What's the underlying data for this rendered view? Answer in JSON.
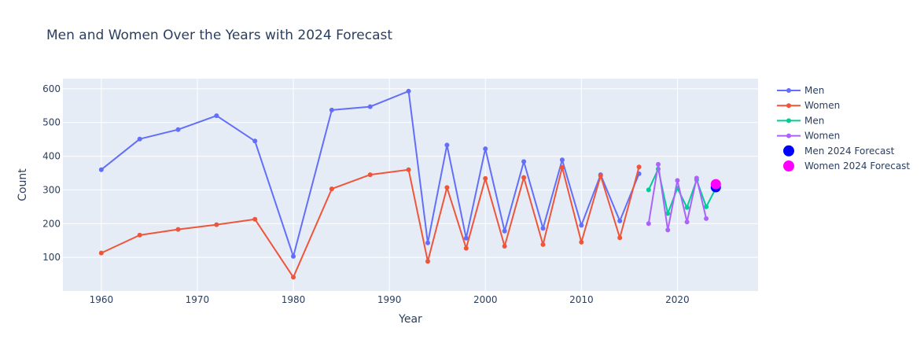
{
  "chart_data": {
    "type": "line",
    "title": "Men and Women Over the Years with 2024 Forecast",
    "xlabel": "Year",
    "ylabel": "Count",
    "xlim": [
      1956,
      2028.4
    ],
    "ylim": [
      0,
      630
    ],
    "x_ticks": [
      1960,
      1970,
      1980,
      1990,
      2000,
      2010,
      2020
    ],
    "y_ticks": [
      100,
      200,
      300,
      400,
      500,
      600
    ],
    "grid": true,
    "legend_position": "right",
    "plot_background": "#e5ecf6",
    "series": [
      {
        "name": "Men",
        "color": "#636efa",
        "mode": "lines+markers",
        "x": [
          1960,
          1964,
          1968,
          1972,
          1976,
          1980,
          1984,
          1988,
          1992,
          1994,
          1996,
          1998,
          2000,
          2002,
          2004,
          2006,
          2008,
          2010,
          2012,
          2014,
          2016
        ],
        "y": [
          360,
          451,
          479,
          520,
          445,
          103,
          537,
          547,
          593,
          143,
          433,
          157,
          422,
          178,
          384,
          186,
          389,
          195,
          345,
          208,
          348
        ]
      },
      {
        "name": "Women",
        "color": "#ef553b",
        "mode": "lines+markers",
        "x": [
          1960,
          1964,
          1968,
          1972,
          1976,
          1980,
          1984,
          1988,
          1992,
          1994,
          1996,
          1998,
          2000,
          2002,
          2004,
          2006,
          2008,
          2010,
          2012,
          2014,
          2016
        ],
        "y": [
          113,
          166,
          183,
          197,
          213,
          41,
          303,
          345,
          360,
          88,
          307,
          127,
          334,
          133,
          337,
          138,
          367,
          145,
          342,
          158,
          368
        ]
      },
      {
        "name": "Men",
        "color": "#00cc96",
        "mode": "lines+markers",
        "x": [
          2017,
          2018,
          2019,
          2020,
          2021,
          2022,
          2023,
          2024
        ],
        "y": [
          300,
          362,
          230,
          305,
          248,
          330,
          250,
          305
        ]
      },
      {
        "name": "Women",
        "color": "#ab63fa",
        "mode": "lines+markers",
        "x": [
          2017,
          2018,
          2019,
          2020,
          2021,
          2022,
          2023
        ],
        "y": [
          200,
          376,
          181,
          328,
          205,
          335,
          215
        ]
      },
      {
        "name": "Men 2024 Forecast",
        "color": "#0000ff",
        "mode": "markers",
        "marker": "large",
        "x": [
          2024
        ],
        "y": [
          308
        ]
      },
      {
        "name": "Women 2024 Forecast",
        "color": "#ff00ff",
        "mode": "markers",
        "marker": "large",
        "x": [
          2024
        ],
        "y": [
          317
        ]
      }
    ]
  }
}
